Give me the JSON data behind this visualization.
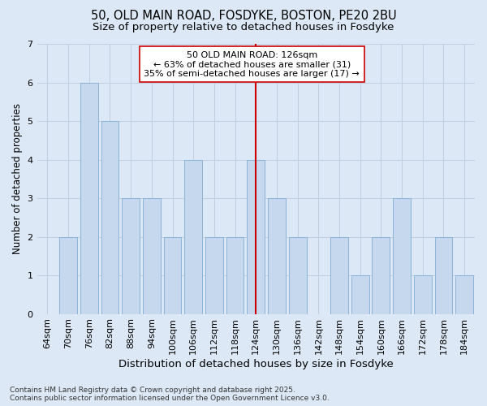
{
  "title1": "50, OLD MAIN ROAD, FOSDYKE, BOSTON, PE20 2BU",
  "title2": "Size of property relative to detached houses in Fosdyke",
  "xlabel": "Distribution of detached houses by size in Fosdyke",
  "ylabel": "Number of detached properties",
  "bins": [
    "64sqm",
    "70sqm",
    "76sqm",
    "82sqm",
    "88sqm",
    "94sqm",
    "100sqm",
    "106sqm",
    "112sqm",
    "118sqm",
    "124sqm",
    "130sqm",
    "136sqm",
    "142sqm",
    "148sqm",
    "154sqm",
    "160sqm",
    "166sqm",
    "172sqm",
    "178sqm",
    "184sqm"
  ],
  "values": [
    0,
    2,
    6,
    5,
    3,
    3,
    2,
    4,
    2,
    2,
    4,
    3,
    2,
    0,
    2,
    1,
    2,
    3,
    1,
    2,
    1
  ],
  "bar_color": "#c5d8ee",
  "bar_edge_color": "#8ab4d8",
  "grid_color": "#c0cfe0",
  "bg_color": "#dce8f5",
  "vline_x_index": 10,
  "vline_color": "#cc0000",
  "annotation_text": "50 OLD MAIN ROAD: 126sqm\n← 63% of detached houses are smaller (31)\n35% of semi-detached houses are larger (17) →",
  "annotation_box_color": "#ffffff",
  "annotation_box_edge": "#cc0000",
  "ylim": [
    0,
    7
  ],
  "yticks": [
    0,
    1,
    2,
    3,
    4,
    5,
    6,
    7
  ],
  "footnote": "Contains HM Land Registry data © Crown copyright and database right 2025.\nContains public sector information licensed under the Open Government Licence v3.0.",
  "title_fontsize": 10.5,
  "subtitle_fontsize": 9.5,
  "tick_fontsize": 8,
  "xlabel_fontsize": 9.5,
  "ylabel_fontsize": 8.5,
  "annot_fontsize": 8,
  "footnote_fontsize": 6.5
}
